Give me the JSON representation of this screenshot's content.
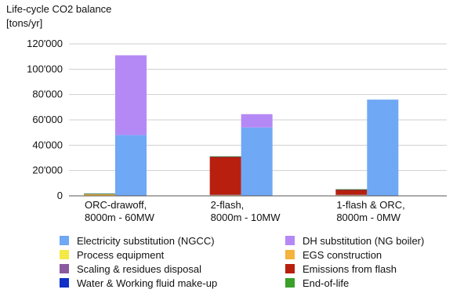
{
  "chart_data": {
    "type": "bar",
    "title": "Life-cycle CO2 balance",
    "ylabel": "[tons/yr]",
    "xlabel": "",
    "ylim": [
      0,
      120000
    ],
    "yticks": [
      0,
      20000,
      40000,
      60000,
      80000,
      100000,
      120000
    ],
    "ytick_labels": [
      "0",
      "20'000",
      "40'000",
      "60'000",
      "80'000",
      "100'000",
      "120'000"
    ],
    "grid": true,
    "legend_position": "bottom",
    "categories": [
      [
        "ORC-drawoff,",
        "8000m - 60MW"
      ],
      [
        "2-flash,",
        "8000m - 10MW"
      ],
      [
        "1-flash & ORC,",
        "8000m - 0MW"
      ]
    ],
    "series": [
      {
        "name": "Electricity substitution (NGCC)",
        "color": "#6fa8f5",
        "group": "substitution",
        "values": [
          48000,
          54000,
          76000
        ]
      },
      {
        "name": "DH substitution (NG boiler)",
        "color": "#b589f5",
        "group": "substitution",
        "values": [
          63000,
          10500,
          0
        ]
      },
      {
        "name": "Process equipment",
        "color": "#f5e948",
        "group": "emissions",
        "values": [
          300,
          200,
          200
        ]
      },
      {
        "name": "EGS construction",
        "color": "#f5b23c",
        "group": "emissions",
        "values": [
          1200,
          700,
          700
        ]
      },
      {
        "name": "Scaling & residues disposal",
        "color": "#8b5a9e",
        "group": "emissions",
        "values": [
          100,
          100,
          100
        ]
      },
      {
        "name": "Emissions from flash",
        "color": "#b81f0e",
        "group": "emissions",
        "values": [
          0,
          30000,
          4000
        ]
      },
      {
        "name": "Water & Working fluid make-up",
        "color": "#1030c8",
        "group": "emissions",
        "values": [
          100,
          100,
          100
        ]
      },
      {
        "name": "End-of-life",
        "color": "#3aa02a",
        "group": "emissions",
        "values": [
          100,
          100,
          100
        ]
      }
    ]
  }
}
